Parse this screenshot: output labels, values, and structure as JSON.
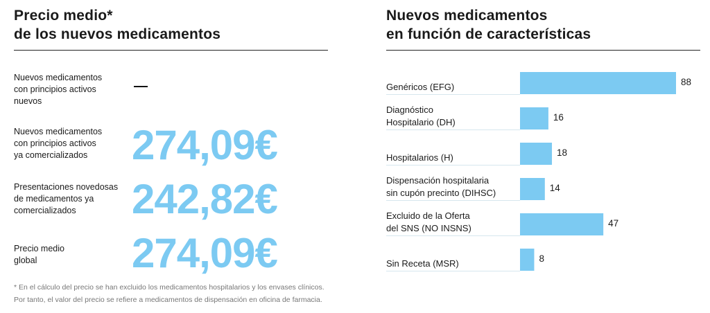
{
  "left": {
    "title": [
      "Precio medio*",
      "de los nuevos medicamentos"
    ],
    "rows": [
      {
        "label": [
          "Nuevos medicamentos",
          "con principios activos",
          "nuevos"
        ],
        "value": "—"
      },
      {
        "label": [
          "Nuevos medicamentos",
          "con principios activos",
          "ya comercializados"
        ],
        "value": "274,09€"
      },
      {
        "label": [
          "Presentaciones novedosas",
          "de medicamentos ya",
          "comercializados"
        ],
        "value": "242,82€"
      },
      {
        "label": [
          "Precio medio",
          "global"
        ],
        "value": "274,09€"
      }
    ],
    "footnote": [
      "* En el cálculo del precio se han excluido los medicamentos hospitalarios y los envases clínicos.",
      "Por tanto, el valor del precio se refiere a medicamentos de dispensación en oficina de farmacia."
    ]
  },
  "chart_data": {
    "type": "bar",
    "orientation": "horizontal",
    "title": "Nuevos medicamentos en función de características",
    "title_lines": [
      "Nuevos medicamentos",
      "en función de características"
    ],
    "categories": [
      [
        "Genéricos (EFG)"
      ],
      [
        "Diagnóstico",
        "Hospitalario (DH)"
      ],
      [
        "Hospitalarios (H)"
      ],
      [
        "Dispensación hospitalaria",
        "sin cupón precinto (DIHSC)"
      ],
      [
        "Excluido de la Oferta",
        "del SNS (NO INSNS)"
      ],
      [
        "Sin Receta (MSR)"
      ]
    ],
    "values": [
      88,
      16,
      18,
      14,
      47,
      8
    ],
    "value_labels": [
      "88",
      "16",
      "18",
      "14",
      "47",
      "8"
    ],
    "xlim": [
      0,
      88
    ],
    "grid": false,
    "bar_color": "#7ccaf2"
  }
}
